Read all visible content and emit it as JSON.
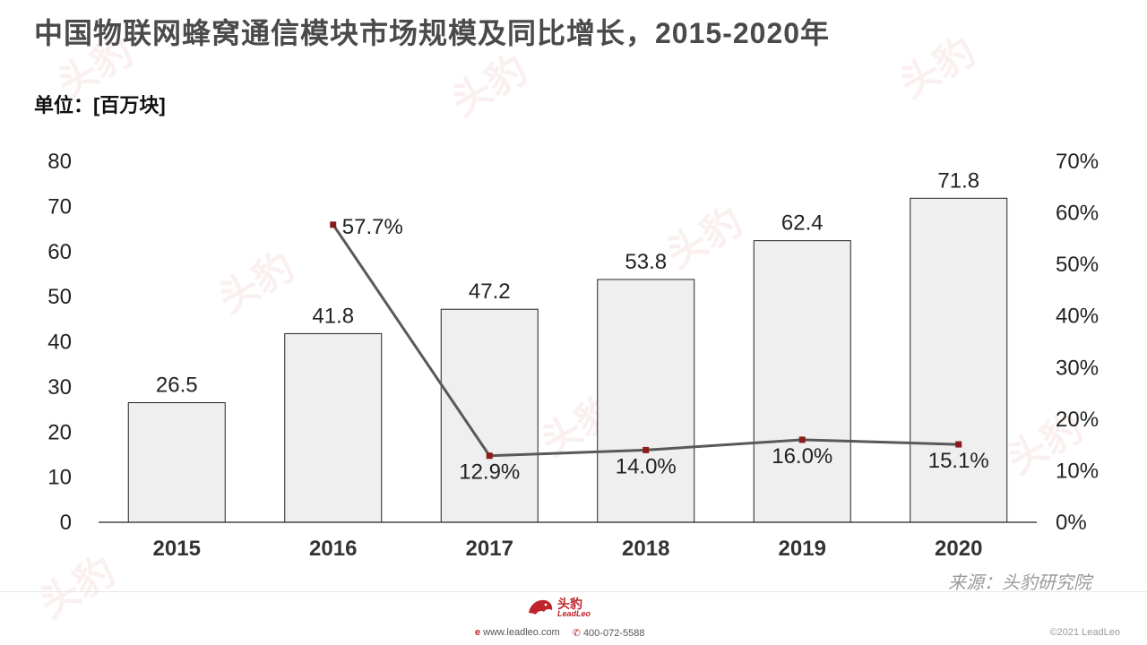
{
  "title": "中国物联网蜂窝通信模块市场规模及同比增长，2015-2020年",
  "unit": "单位：[百万块]",
  "source": "来源：头豹研究院",
  "footer": {
    "logo_cn": "头豹",
    "logo_en": "LeadLeo",
    "website": "www.leadleo.com",
    "phone": "400-072-5588",
    "copyright": "©2021 LeadLeo"
  },
  "watermark_text": "头豹",
  "colors": {
    "bar_fill": "#efeff0",
    "bar_stroke": "#222222",
    "line": "#595959",
    "marker": "#8b1a1a",
    "brand": "#c0242b"
  },
  "chart_data": {
    "type": "bar",
    "categories": [
      "2015",
      "2016",
      "2017",
      "2018",
      "2019",
      "2020"
    ],
    "series": [
      {
        "values": [
          26.5,
          41.8,
          47.2,
          53.8,
          62.4,
          71.8
        ],
        "labels": [
          "26.5",
          "41.8",
          "47.2",
          "53.8",
          "62.4",
          "71.8"
        ]
      },
      {
        "type": "line",
        "axis": "right",
        "values": [
          null,
          57.7,
          12.9,
          14.0,
          16.0,
          15.1
        ],
        "labels": [
          "",
          "57.7%",
          "12.9%",
          "14.0%",
          "16.0%",
          "15.1%"
        ]
      }
    ],
    "ylim": [
      0,
      80
    ],
    "yticks": [
      "0",
      "10",
      "20",
      "30",
      "40",
      "50",
      "60",
      "70",
      "80"
    ],
    "y2lim": [
      0,
      70
    ],
    "y2ticks": [
      "0%",
      "10%",
      "20%",
      "30%",
      "40%",
      "50%",
      "60%",
      "70%"
    ],
    "grid": false
  }
}
